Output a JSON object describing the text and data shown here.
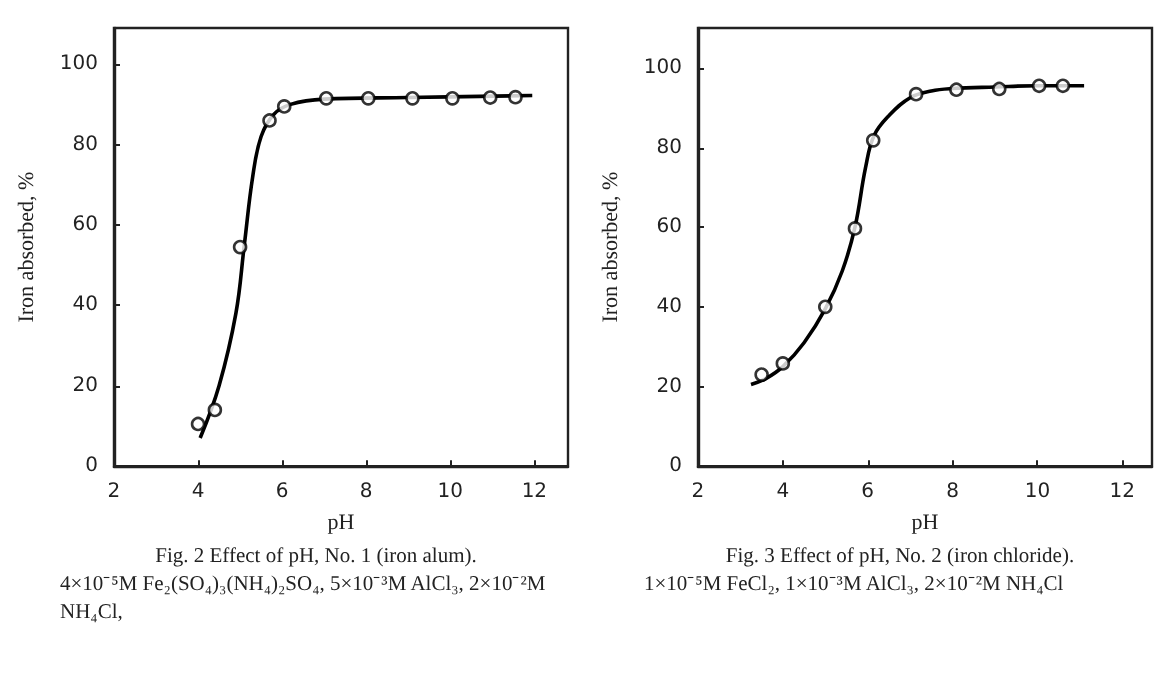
{
  "chart_data": [
    {
      "type": "scatter",
      "xlabel": "pH",
      "ylabel": "Iron absorbed, %",
      "xlim": [
        2,
        12.8
      ],
      "ylim": [
        0,
        109
      ],
      "xticks": [
        2,
        4,
        6,
        8,
        10,
        12
      ],
      "yticks": [
        0,
        20,
        40,
        60,
        80,
        100
      ],
      "grid": false,
      "annotations": [
        "Fig. 2  Effect of pH, No. 1 (iron alum).",
        "4×10⁻⁵M  Fe₂(SO₄)₃(NH₄)₂SO₄,  5×10⁻³M AlCl₃,  2×10⁻²M  NH₄Cl,"
      ],
      "series": [
        {
          "type": "scatter",
          "color": "#000000",
          "marker": "circle",
          "x": [
            4.0,
            4.4,
            5.0,
            5.7,
            6.05,
            7.05,
            8.05,
            9.1,
            10.05,
            10.95,
            11.55
          ],
          "values": [
            10.5,
            14,
            54.5,
            86,
            89.5,
            91.5,
            91.5,
            91.5,
            91.5,
            91.7,
            91.8
          ]
        },
        {
          "type": "line",
          "color": "#000000",
          "marker": "none",
          "x": [
            4.05,
            4.5,
            4.9,
            5.1,
            5.3,
            5.5,
            5.8,
            6.2,
            7,
            9,
            11.95
          ],
          "values": [
            7,
            20,
            38,
            55,
            72,
            82,
            87.5,
            90,
            91.3,
            91.7,
            92.2
          ]
        }
      ]
    },
    {
      "type": "scatter",
      "xlabel": "pH",
      "ylabel": "Iron absorbed, %",
      "xlim": [
        2,
        12.7
      ],
      "ylim": [
        0,
        110
      ],
      "xticks": [
        2,
        4,
        6,
        8,
        10,
        12
      ],
      "yticks": [
        0,
        20,
        40,
        60,
        80,
        100
      ],
      "grid": false,
      "annotations": [
        "Fig. 3  Effect of pH, No. 2 (iron chloride).",
        "1×10⁻⁵M  FeCl₂,   1×10⁻³M  AlCl₃,  2×10⁻²M  NH₄Cl"
      ],
      "series": [
        {
          "type": "scatter",
          "color": "#000000",
          "marker": "circle",
          "x": [
            3.5,
            4.0,
            5.0,
            5.7,
            6.13,
            7.14,
            8.09,
            9.1,
            10.04,
            10.6
          ],
          "values": [
            23,
            25.8,
            40,
            59.7,
            81.8,
            93.4,
            94.5,
            94.7,
            95.5,
            95.5
          ]
        },
        {
          "type": "line",
          "color": "#000000",
          "marker": "none",
          "x": [
            3.25,
            3.6,
            4,
            4.5,
            5,
            5.4,
            5.7,
            5.95,
            6.15,
            6.5,
            7,
            7.5,
            8,
            9,
            10,
            11.1
          ],
          "values": [
            20.5,
            22,
            25,
            31,
            39.5,
            49,
            60,
            75,
            83,
            88,
            92.5,
            94.2,
            94.8,
            95.2,
            95.5,
            95.5
          ]
        }
      ]
    }
  ]
}
